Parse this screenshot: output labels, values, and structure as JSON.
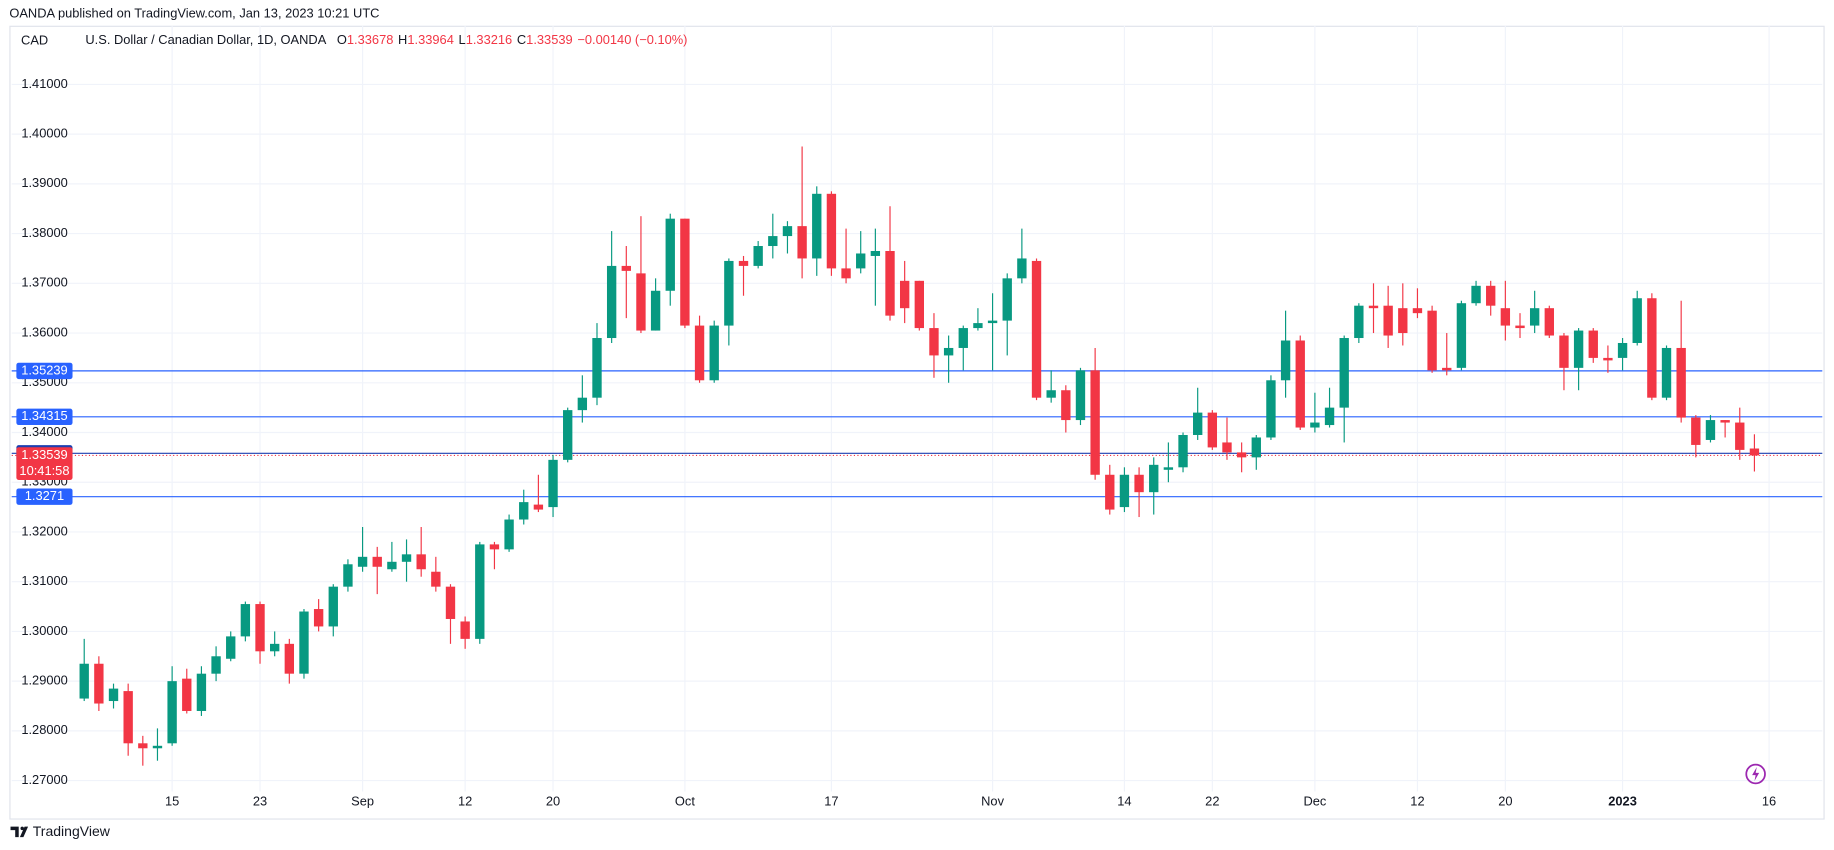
{
  "header": {
    "text": "OANDA published on TradingView.com, Jan 13, 2023 10:21 UTC"
  },
  "chart_data": {
    "type": "candlestick",
    "pane_label": "CAD",
    "title": "U.S. Dollar / Canadian Dollar, 1D, OANDA",
    "ohlc_legend": [
      {
        "key": "O",
        "value": 1.33678
      },
      {
        "key": "H",
        "value": 1.33964
      },
      {
        "key": "L",
        "value": 1.33216
      },
      {
        "key": "C",
        "value": 1.33539
      }
    ],
    "change": "−0.00140 (−0.10%)",
    "up_color": "#089981",
    "down_color": "#f23645",
    "grid": true,
    "categories": [
      null,
      null,
      null,
      null,
      null,
      null,
      "15",
      null,
      null,
      null,
      null,
      null,
      "23",
      null,
      null,
      null,
      null,
      null,
      null,
      "Sep",
      null,
      null,
      null,
      null,
      null,
      null,
      "12",
      null,
      null,
      null,
      null,
      null,
      "20",
      null,
      null,
      null,
      null,
      null,
      null,
      null,
      null,
      "Oct",
      null,
      null,
      null,
      null,
      null,
      null,
      null,
      null,
      null,
      "17",
      null,
      null,
      null,
      null,
      null,
      null,
      null,
      null,
      null,
      null,
      "Nov",
      null,
      null,
      null,
      null,
      null,
      null,
      null,
      null,
      "14",
      null,
      null,
      null,
      null,
      null,
      "22",
      null,
      null,
      null,
      null,
      null,
      null,
      "Dec",
      null,
      null,
      null,
      null,
      null,
      null,
      "12",
      null,
      null,
      null,
      null,
      null,
      "20",
      null,
      null,
      null,
      null,
      null,
      null,
      null,
      "2023",
      null,
      null,
      null,
      null,
      null,
      null,
      null,
      null,
      null,
      "16"
    ],
    "open": [
      1.2865,
      1.2935,
      1.286,
      1.288,
      1.2775,
      1.2765,
      1.2775,
      1.2905,
      1.284,
      1.2915,
      1.2945,
      1.299,
      1.3055,
      1.296,
      1.2975,
      1.2915,
      1.3045,
      1.301,
      1.309,
      1.313,
      1.315,
      1.3125,
      1.314,
      1.3155,
      1.312,
      1.309,
      1.302,
      1.2985,
      1.3175,
      1.3165,
      1.3225,
      1.3255,
      1.325,
      1.3345,
      1.3445,
      1.347,
      1.359,
      1.3735,
      1.372,
      1.3605,
      1.3685,
      1.383,
      1.3615,
      1.3505,
      1.3615,
      1.3745,
      1.3735,
      1.3775,
      1.3795,
      1.3815,
      1.375,
      1.388,
      1.373,
      1.373,
      1.3755,
      1.3765,
      1.3705,
      1.3705,
      1.361,
      1.3555,
      1.357,
      1.361,
      1.362,
      1.3625,
      1.371,
      1.3745,
      1.347,
      1.3485,
      1.3425,
      1.3525,
      1.3315,
      1.325,
      1.3315,
      1.328,
      1.3325,
      1.333,
      1.3395,
      1.344,
      1.338,
      1.336,
      1.335,
      1.339,
      1.3505,
      1.3585,
      1.341,
      1.3415,
      1.345,
      1.359,
      1.3655,
      1.3655,
      1.365,
      1.365,
      1.3645,
      1.353,
      1.353,
      1.366,
      1.3695,
      1.365,
      1.3615,
      1.3615,
      1.365,
      1.3595,
      1.353,
      1.3605,
      1.355,
      1.355,
      1.358,
      1.367,
      1.347,
      1.357,
      1.343,
      1.3385,
      1.3425,
      1.342,
      1.33678,
      null
    ],
    "high": [
      1.2985,
      1.295,
      1.2895,
      1.2895,
      1.279,
      1.2805,
      1.293,
      1.2925,
      1.293,
      1.297,
      1.3,
      1.306,
      1.306,
      1.3,
      1.2985,
      1.3045,
      1.3065,
      1.3095,
      1.3145,
      1.321,
      1.317,
      1.318,
      1.3185,
      1.321,
      1.315,
      1.3095,
      1.303,
      1.318,
      1.318,
      1.3235,
      1.3285,
      1.3315,
      1.3355,
      1.345,
      1.3515,
      1.362,
      1.3805,
      1.3775,
      1.3835,
      1.371,
      1.384,
      1.383,
      1.3635,
      1.3625,
      1.375,
      1.3755,
      1.3785,
      1.384,
      1.3825,
      1.3975,
      1.3895,
      1.3885,
      1.381,
      1.3805,
      1.381,
      1.3855,
      1.3745,
      1.3705,
      1.364,
      1.3595,
      1.3615,
      1.365,
      1.368,
      1.372,
      1.381,
      1.375,
      1.3525,
      1.3495,
      1.353,
      1.357,
      1.3335,
      1.333,
      1.333,
      1.335,
      1.338,
      1.34,
      1.349,
      1.3445,
      1.343,
      1.338,
      1.3395,
      1.3515,
      1.3645,
      1.3595,
      1.348,
      1.349,
      1.3595,
      1.366,
      1.37,
      1.3695,
      1.37,
      1.369,
      1.3655,
      1.36,
      1.3665,
      1.3705,
      1.3705,
      1.3705,
      1.364,
      1.3685,
      1.3655,
      1.36,
      1.361,
      1.361,
      1.3575,
      1.359,
      1.3685,
      1.368,
      1.3575,
      1.3665,
      1.3435,
      1.3435,
      1.3425,
      1.345,
      1.33964,
      null
    ],
    "low": [
      1.286,
      1.284,
      1.2845,
      1.275,
      1.273,
      1.274,
      1.277,
      1.2835,
      1.283,
      1.29,
      1.294,
      1.298,
      1.2935,
      1.295,
      1.2895,
      1.2905,
      1.3,
      1.299,
      1.308,
      1.312,
      1.3075,
      1.312,
      1.31,
      1.311,
      1.308,
      1.2975,
      1.2965,
      1.2975,
      1.3125,
      1.316,
      1.3215,
      1.324,
      1.323,
      1.334,
      1.342,
      1.3455,
      1.358,
      1.363,
      1.36,
      1.3605,
      1.3655,
      1.361,
      1.35,
      1.35,
      1.3575,
      1.3675,
      1.373,
      1.375,
      1.376,
      1.371,
      1.3715,
      1.3715,
      1.37,
      1.372,
      1.3655,
      1.3625,
      1.362,
      1.3605,
      1.351,
      1.35,
      1.3525,
      1.3605,
      1.3525,
      1.3555,
      1.37,
      1.3465,
      1.346,
      1.34,
      1.3415,
      1.3305,
      1.3235,
      1.324,
      1.323,
      1.3235,
      1.33,
      1.332,
      1.3385,
      1.3365,
      1.3345,
      1.332,
      1.3325,
      1.3385,
      1.347,
      1.3405,
      1.34,
      1.341,
      1.338,
      1.358,
      1.36,
      1.357,
      1.3575,
      1.363,
      1.352,
      1.3515,
      1.3525,
      1.3655,
      1.3635,
      1.3585,
      1.359,
      1.36,
      1.359,
      1.3485,
      1.3485,
      1.354,
      1.352,
      1.3525,
      1.3575,
      1.3465,
      1.3465,
      1.342,
      1.335,
      1.338,
      1.339,
      1.3345,
      1.33216,
      null
    ],
    "close": [
      1.2935,
      1.2855,
      1.2885,
      1.2775,
      1.2765,
      1.277,
      1.29,
      1.284,
      1.2915,
      1.295,
      1.299,
      1.3055,
      1.296,
      1.2975,
      1.2915,
      1.304,
      1.301,
      1.309,
      1.3135,
      1.315,
      1.313,
      1.314,
      1.3155,
      1.3125,
      1.309,
      1.3025,
      1.2985,
      1.3175,
      1.3165,
      1.3225,
      1.326,
      1.3245,
      1.3345,
      1.3445,
      1.347,
      1.359,
      1.3735,
      1.3725,
      1.3605,
      1.3685,
      1.383,
      1.3615,
      1.3505,
      1.3615,
      1.3745,
      1.3735,
      1.3775,
      1.3795,
      1.3815,
      1.375,
      1.388,
      1.373,
      1.371,
      1.376,
      1.3765,
      1.3635,
      1.365,
      1.361,
      1.3555,
      1.357,
      1.361,
      1.362,
      1.3625,
      1.371,
      1.375,
      1.347,
      1.3485,
      1.3425,
      1.3525,
      1.3315,
      1.3245,
      1.3315,
      1.328,
      1.3335,
      1.333,
      1.3395,
      1.344,
      1.337,
      1.336,
      1.335,
      1.339,
      1.3505,
      1.3585,
      1.341,
      1.342,
      1.345,
      1.359,
      1.3655,
      1.365,
      1.3595,
      1.36,
      1.364,
      1.3525,
      1.3525,
      1.366,
      1.3695,
      1.3655,
      1.3615,
      1.361,
      1.365,
      1.3595,
      1.353,
      1.3605,
      1.355,
      1.3545,
      1.358,
      1.367,
      1.347,
      1.357,
      1.343,
      1.3375,
      1.3425,
      1.342,
      1.3365,
      1.33539,
      null
    ],
    "ylim": [
      1.2678,
      1.4218
    ],
    "yticks": [
      {
        "value": 1.27,
        "label": "1.27000"
      },
      {
        "value": 1.28,
        "label": "1.28000"
      },
      {
        "value": 1.29,
        "label": "1.29000"
      },
      {
        "value": 1.3,
        "label": "1.30000"
      },
      {
        "value": 1.31,
        "label": "1.31000"
      },
      {
        "value": 1.32,
        "label": "1.32000"
      },
      {
        "value": 1.33,
        "label": "1.33000"
      },
      {
        "value": 1.34,
        "label": "1.34000"
      },
      {
        "value": 1.35,
        "label": "1.35000"
      },
      {
        "value": 1.36,
        "label": "1.36000"
      },
      {
        "value": 1.37,
        "label": "1.37000"
      },
      {
        "value": 1.38,
        "label": "1.38000"
      },
      {
        "value": 1.39,
        "label": "1.39000"
      },
      {
        "value": 1.4,
        "label": "1.40000"
      },
      {
        "value": 1.41,
        "label": "1.41000"
      }
    ],
    "hlines": [
      {
        "value": 1.35239,
        "color": "#2962ff"
      },
      {
        "value": 1.34315,
        "color": "#2962ff"
      },
      {
        "value": 1.3271,
        "color": "#2962ff"
      },
      {
        "value": 1.33581,
        "color": "#1c3fb0"
      }
    ],
    "price_line": {
      "value": 1.33539,
      "countdown": "10:41:58",
      "color": "#f23645"
    }
  },
  "footer": {
    "brand": "TradingView"
  }
}
